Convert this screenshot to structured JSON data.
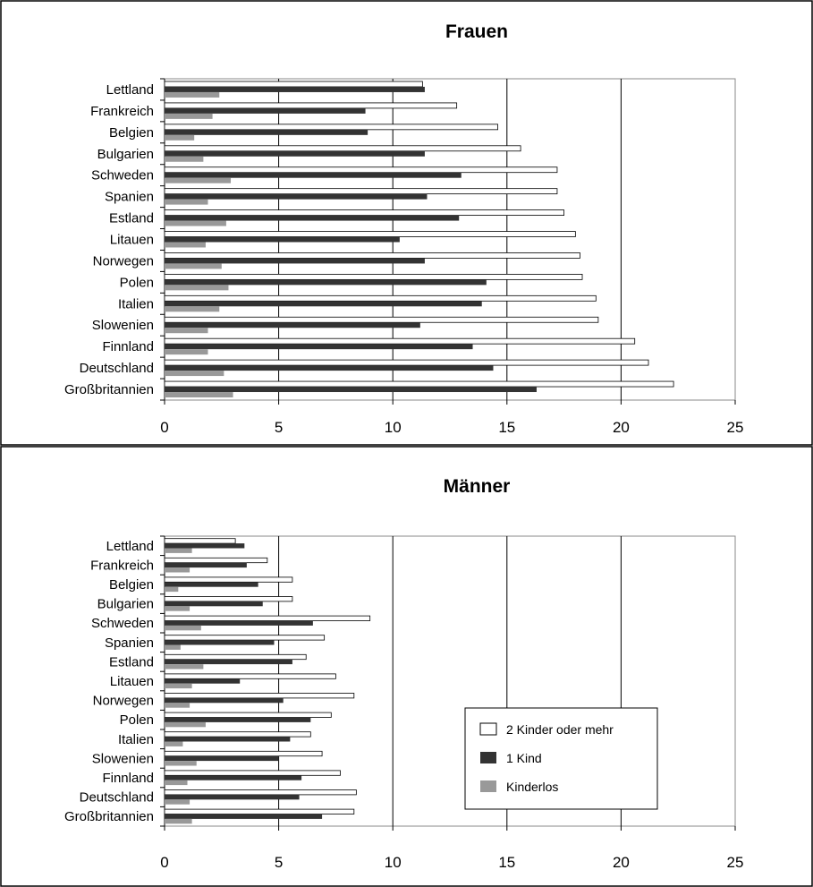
{
  "colors": {
    "two_plus": "#ffffff",
    "one": "#333333",
    "none": "#999999",
    "grid": "#000000"
  },
  "legend": {
    "items": [
      "2 Kinder oder mehr",
      "1 Kind",
      "Kinderlos"
    ]
  },
  "chart_data": [
    {
      "type": "bar",
      "orientation": "horizontal",
      "title": "Frauen",
      "categories": [
        "Lettland",
        "Frankreich",
        "Belgien",
        "Bulgarien",
        "Schweden",
        "Spanien",
        "Estland",
        "Litauen",
        "Norwegen",
        "Polen",
        "Italien",
        "Slowenien",
        "Finnland",
        "Deutschland",
        "Großbritannien"
      ],
      "series": [
        {
          "name": "2 Kinder oder mehr",
          "values": [
            11.3,
            12.8,
            14.6,
            15.6,
            17.2,
            17.2,
            17.5,
            18.0,
            18.2,
            18.3,
            18.9,
            19.0,
            20.6,
            21.2,
            22.3
          ]
        },
        {
          "name": "1 Kind",
          "values": [
            11.4,
            8.8,
            8.9,
            11.4,
            13.0,
            11.5,
            12.9,
            10.3,
            11.4,
            14.1,
            13.9,
            11.2,
            13.5,
            14.4,
            16.3
          ]
        },
        {
          "name": "Kinderlos",
          "values": [
            2.4,
            2.1,
            1.3,
            1.7,
            2.9,
            1.9,
            2.7,
            1.8,
            2.5,
            2.8,
            2.4,
            1.9,
            1.9,
            2.6,
            3.0
          ]
        }
      ],
      "xlim": [
        0,
        25
      ],
      "xticks": [
        "0",
        "5",
        "10",
        "15",
        "20",
        "25"
      ],
      "grid": true
    },
    {
      "type": "bar",
      "orientation": "horizontal",
      "title": "Männer",
      "categories": [
        "Lettland",
        "Frankreich",
        "Belgien",
        "Bulgarien",
        "Schweden",
        "Spanien",
        "Estland",
        "Litauen",
        "Norwegen",
        "Polen",
        "Italien",
        "Slowenien",
        "Finnland",
        "Deutschland",
        "Großbritannien"
      ],
      "series": [
        {
          "name": "2 Kinder oder mehr",
          "values": [
            3.1,
            4.5,
            5.6,
            5.6,
            9.0,
            7.0,
            6.2,
            7.5,
            8.3,
            7.3,
            6.4,
            6.9,
            7.7,
            8.4,
            8.3
          ]
        },
        {
          "name": "1 Kind",
          "values": [
            3.5,
            3.6,
            4.1,
            4.3,
            6.5,
            4.8,
            5.6,
            3.3,
            5.2,
            6.4,
            5.5,
            5.0,
            6.0,
            5.9,
            6.9
          ]
        },
        {
          "name": "Kinderlos",
          "values": [
            1.2,
            1.1,
            0.6,
            1.1,
            1.6,
            0.7,
            1.7,
            1.2,
            1.1,
            1.8,
            0.8,
            1.4,
            1.0,
            1.1,
            1.2
          ]
        }
      ],
      "xlim": [
        0,
        25
      ],
      "xticks": [
        "0",
        "5",
        "10",
        "15",
        "20",
        "25"
      ],
      "grid": true
    }
  ]
}
